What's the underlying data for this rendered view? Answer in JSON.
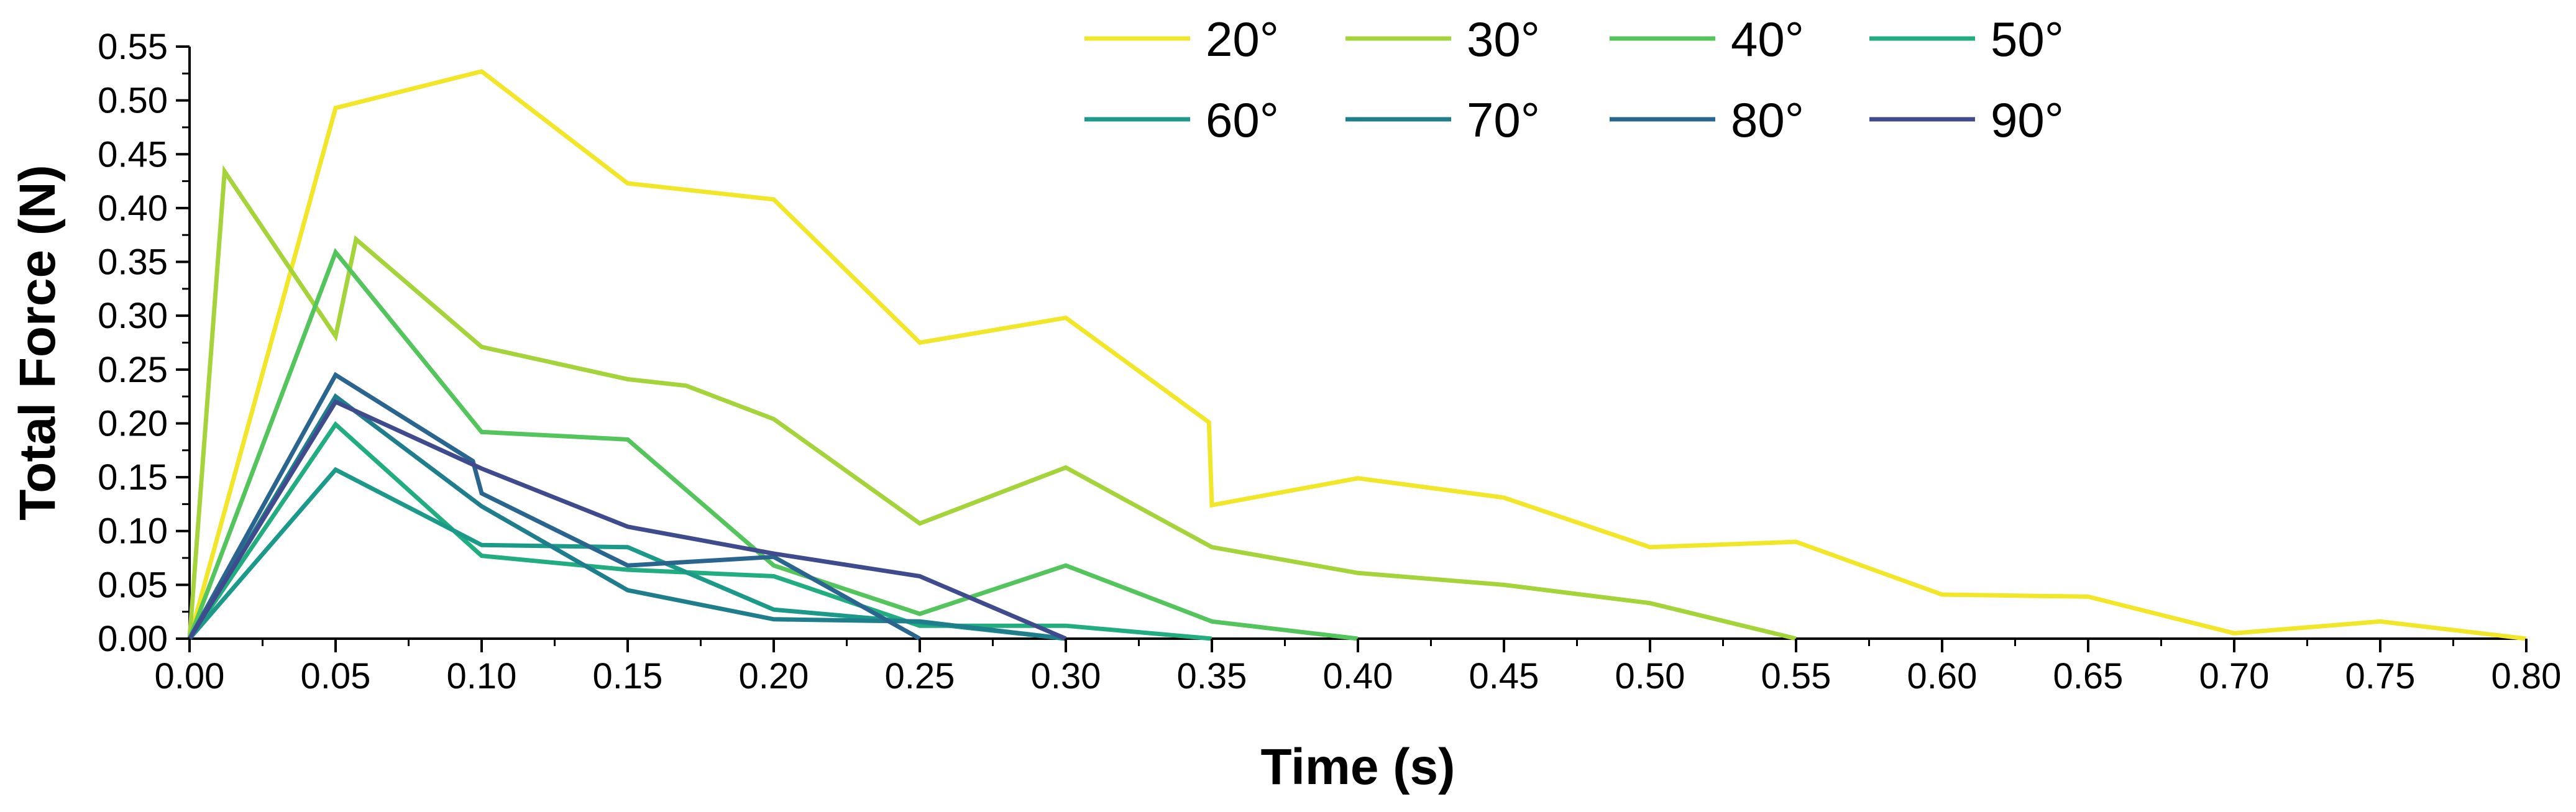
{
  "chart_data": {
    "type": "line",
    "title": "",
    "xlabel": "Time (s)",
    "ylabel": "Total Force (N)",
    "xlim": [
      0,
      0.8
    ],
    "ylim": [
      0,
      0.55
    ],
    "xticks": [
      0.0,
      0.05,
      0.1,
      0.15,
      0.2,
      0.25,
      0.3,
      0.35,
      0.4,
      0.45,
      0.5,
      0.55,
      0.6,
      0.65,
      0.7,
      0.75,
      0.8
    ],
    "xtick_labels": [
      "0.00",
      "0.05",
      "0.10",
      "0.15",
      "0.20",
      "0.25",
      "0.30",
      "0.35",
      "0.40",
      "0.45",
      "0.50",
      "0.55",
      "0.60",
      "0.65",
      "0.70",
      "0.75",
      "0.80"
    ],
    "yticks": [
      0.0,
      0.05,
      0.1,
      0.15,
      0.2,
      0.25,
      0.3,
      0.35,
      0.4,
      0.45,
      0.5,
      0.55
    ],
    "ytick_labels": [
      "0.00",
      "0.05",
      "0.10",
      "0.15",
      "0.20",
      "0.25",
      "0.30",
      "0.35",
      "0.40",
      "0.45",
      "0.50",
      "0.55"
    ],
    "grid": false,
    "legend_position": "top",
    "series": [
      {
        "name": "20°",
        "color": "#f2e628",
        "x": [
          0,
          0.05,
          0.1,
          0.15,
          0.2,
          0.25,
          0.3,
          0.349,
          0.35,
          0.4,
          0.45,
          0.5,
          0.55,
          0.6,
          0.65,
          0.7,
          0.75,
          0.8
        ],
        "y": [
          0,
          0.493,
          0.527,
          0.423,
          0.408,
          0.275,
          0.298,
          0.201,
          0.124,
          0.149,
          0.131,
          0.085,
          0.09,
          0.041,
          0.039,
          0.005,
          0.016,
          0
        ]
      },
      {
        "name": "30°",
        "color": "#a5d43a",
        "x": [
          0,
          0.012,
          0.05,
          0.057,
          0.1,
          0.15,
          0.17,
          0.2,
          0.25,
          0.3,
          0.35,
          0.4,
          0.45,
          0.5,
          0.55
        ],
        "y": [
          0,
          0.434,
          0.281,
          0.371,
          0.271,
          0.241,
          0.235,
          0.204,
          0.107,
          0.159,
          0.085,
          0.061,
          0.05,
          0.033,
          0
        ]
      },
      {
        "name": "40°",
        "color": "#54c55c",
        "x": [
          0,
          0.05,
          0.1,
          0.15,
          0.2,
          0.25,
          0.3,
          0.35,
          0.4
        ],
        "y": [
          0,
          0.359,
          0.192,
          0.185,
          0.068,
          0.023,
          0.068,
          0.016,
          0
        ]
      },
      {
        "name": "50°",
        "color": "#22ad80",
        "x": [
          0,
          0.05,
          0.1,
          0.15,
          0.2,
          0.25,
          0.3,
          0.35
        ],
        "y": [
          0,
          0.199,
          0.077,
          0.064,
          0.058,
          0.012,
          0.012,
          0
        ]
      },
      {
        "name": "60°",
        "color": "#1b9a8a",
        "x": [
          0,
          0.05,
          0.1,
          0.15,
          0.2,
          0.25,
          0.3
        ],
        "y": [
          0,
          0.157,
          0.087,
          0.085,
          0.027,
          0.015,
          0
        ]
      },
      {
        "name": "70°",
        "color": "#1f7e8c",
        "x": [
          0,
          0.05,
          0.1,
          0.15,
          0.2,
          0.25,
          0.3
        ],
        "y": [
          0,
          0.225,
          0.123,
          0.045,
          0.018,
          0.016,
          0
        ]
      },
      {
        "name": "80°",
        "color": "#2a6590",
        "x": [
          0,
          0.05,
          0.097,
          0.1,
          0.15,
          0.2,
          0.25
        ],
        "y": [
          0,
          0.245,
          0.165,
          0.135,
          0.068,
          0.076,
          0
        ]
      },
      {
        "name": "90°",
        "color": "#3f4b8c",
        "x": [
          0,
          0.05,
          0.1,
          0.15,
          0.2,
          0.25,
          0.3
        ],
        "y": [
          0,
          0.22,
          0.158,
          0.104,
          0.079,
          0.058,
          0
        ]
      }
    ]
  }
}
